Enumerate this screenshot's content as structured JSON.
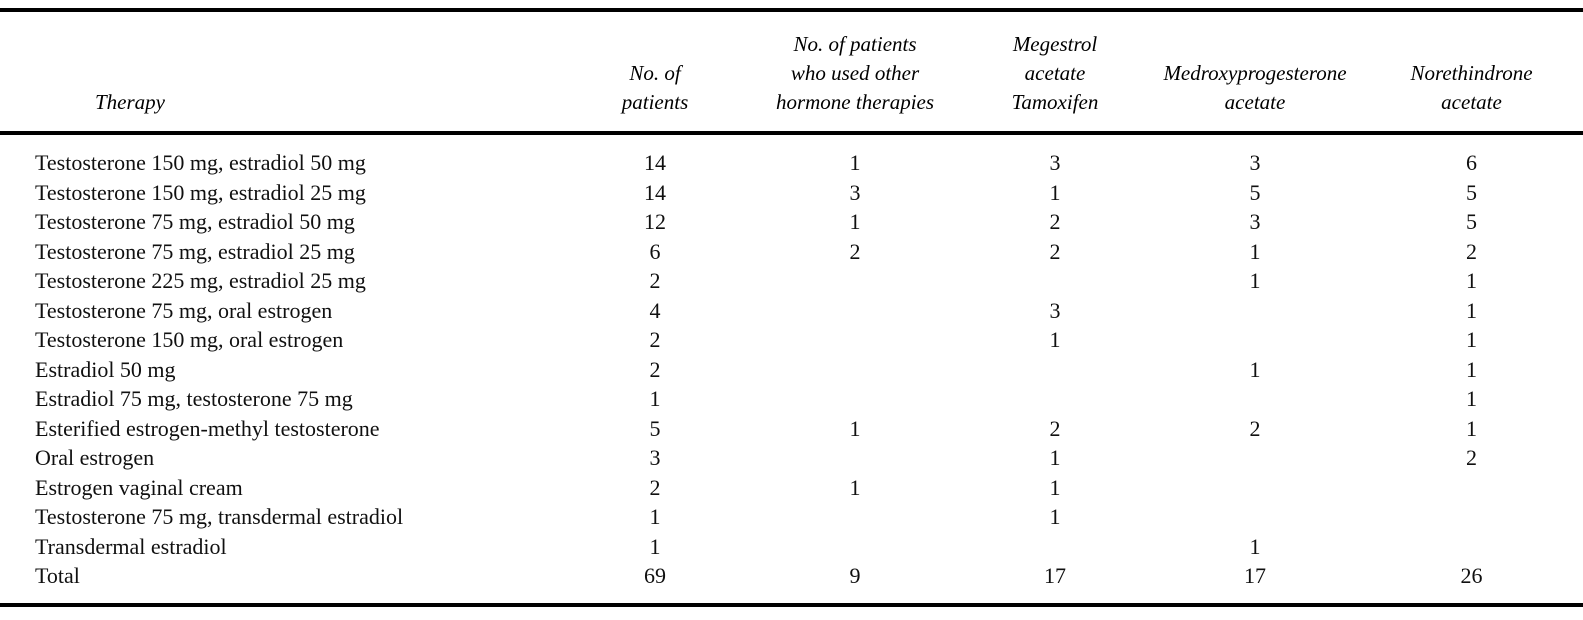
{
  "page": {
    "background_color": "#ffffff",
    "rule_color": "#000000"
  },
  "table": {
    "headers": [
      "Therapy",
      "No. of\npatients",
      "No. of patients\nwho used other\nhormone therapies",
      "Megestrol\nacetate\nTamoxifen",
      "Medroxyprogesterone\nacetate",
      "Norethindrone\nacetate"
    ],
    "rows": [
      [
        "Testosterone 150 mg, estradiol 50 mg",
        "14",
        "1",
        "3",
        "3",
        "6"
      ],
      [
        "Testosterone 150 mg, estradiol 25 mg",
        "14",
        "3",
        "1",
        "5",
        "5"
      ],
      [
        "Testosterone 75 mg, estradiol 50 mg",
        "12",
        "1",
        "2",
        "3",
        "5"
      ],
      [
        "Testosterone 75 mg, estradiol 25 mg",
        "6",
        "2",
        "2",
        "1",
        "2"
      ],
      [
        "Testosterone 225 mg, estradiol 25 mg",
        "2",
        "",
        "",
        "1",
        "1"
      ],
      [
        "Testosterone 75 mg, oral estrogen",
        "4",
        "",
        "3",
        "",
        "1"
      ],
      [
        "Testosterone 150 mg, oral estrogen",
        "2",
        "",
        "1",
        "",
        "1"
      ],
      [
        "Estradiol 50 mg",
        "2",
        "",
        "",
        "1",
        "1"
      ],
      [
        "Estradiol 75 mg, testosterone 75 mg",
        "1",
        "",
        "",
        "",
        "1"
      ],
      [
        "Esterified estrogen-methyl testosterone",
        "5",
        "1",
        "2",
        "2",
        "1"
      ],
      [
        "Oral estrogen",
        "3",
        "",
        "1",
        "",
        "2"
      ],
      [
        "Estrogen vaginal cream",
        "2",
        "1",
        "1",
        "",
        ""
      ],
      [
        "Testosterone 75 mg, transdermal estradiol",
        "1",
        "",
        "1",
        "",
        ""
      ],
      [
        "Transdermal estradiol",
        "1",
        "",
        "",
        "1",
        ""
      ],
      [
        "Total",
        "69",
        "9",
        "17",
        "17",
        "26"
      ]
    ]
  }
}
